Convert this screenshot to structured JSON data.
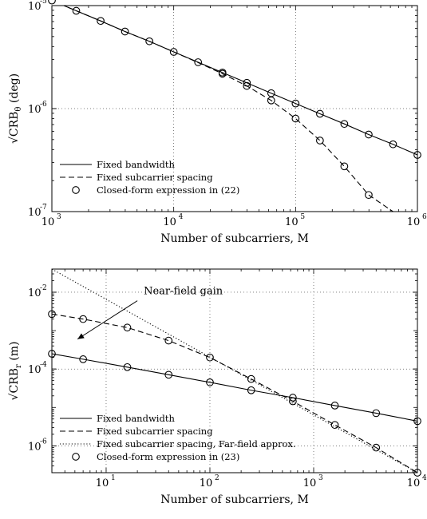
{
  "chart_data": [
    {
      "type": "line",
      "xscale": "log",
      "yscale": "log",
      "xlim": [
        1000,
        1000000
      ],
      "ylim": [
        1e-07,
        1e-05
      ],
      "xlabel": "Number of subcarriers, M",
      "ylabel": "√CRB_θ (deg)",
      "ylabel_parts": {
        "pre": "√CRB",
        "sub": "θ",
        "post": " (deg)"
      },
      "x_ticks": [
        {
          "value": 1000,
          "base": "10",
          "exp": "3"
        },
        {
          "value": 10000,
          "base": "10",
          "exp": "4"
        },
        {
          "value": 100000,
          "base": "10",
          "exp": "5"
        },
        {
          "value": 1000000,
          "base": "10",
          "exp": "6"
        }
      ],
      "y_ticks": [
        {
          "value": 1e-07,
          "base": "10",
          "exp": "-7"
        },
        {
          "value": 1e-06,
          "base": "10",
          "exp": "-6"
        },
        {
          "value": 1e-05,
          "base": "10",
          "exp": "-5"
        }
      ],
      "grid": true,
      "legend_position": "bottom-left",
      "legend": [
        {
          "label": "Fixed bandwidth",
          "style": "solid"
        },
        {
          "label": "Fixed subcarrier spacing",
          "style": "dashed"
        },
        {
          "label": "Closed-form expression in (22)",
          "style": "marker"
        }
      ],
      "series": [
        {
          "name": "Fixed bandwidth",
          "style": "solid",
          "x": [
            1000,
            1585,
            2512,
            3981,
            6310,
            10000,
            15849,
            25119,
            39811,
            63096,
            100000,
            158489,
            251189,
            398107,
            630957,
            1000000
          ],
          "y": [
            1.12e-05,
            8.9e-06,
            7.1e-06,
            5.6e-06,
            4.5e-06,
            3.55e-06,
            2.82e-06,
            2.24e-06,
            1.78e-06,
            1.41e-06,
            1.12e-06,
            8.9e-07,
            7.1e-07,
            5.6e-07,
            4.5e-07,
            3.55e-07
          ]
        },
        {
          "name": "Fixed subcarrier spacing",
          "style": "dashed",
          "x": [
            1000,
            1585,
            2512,
            3981,
            6310,
            10000,
            15849,
            25119,
            39811,
            63096,
            100000,
            158489,
            251189,
            398107,
            630957
          ],
          "y": [
            1.12e-05,
            8.9e-06,
            7.1e-06,
            5.6e-06,
            4.5e-06,
            3.55e-06,
            2.8e-06,
            2.18e-06,
            1.66e-06,
            1.2e-06,
            8e-07,
            4.9e-07,
            2.75e-07,
            1.45e-07,
            1e-07
          ]
        }
      ],
      "markers": [
        {
          "x": [
            1000,
            1585,
            2512,
            3981,
            6310,
            10000,
            15849,
            25119,
            39811,
            63096,
            100000,
            158489,
            251189,
            398107,
            630957,
            1000000
          ],
          "y": [
            1.12e-05,
            8.9e-06,
            7.1e-06,
            5.6e-06,
            4.5e-06,
            3.55e-06,
            2.82e-06,
            2.24e-06,
            1.78e-06,
            1.41e-06,
            1.12e-06,
            8.9e-07,
            7.1e-07,
            5.6e-07,
            4.5e-07,
            3.55e-07
          ]
        },
        {
          "x": [
            25119,
            39811,
            63096,
            100000,
            158489,
            251189,
            398107
          ],
          "y": [
            2.18e-06,
            1.66e-06,
            1.2e-06,
            8e-07,
            4.9e-07,
            2.75e-07,
            1.45e-07
          ]
        }
      ]
    },
    {
      "type": "line",
      "xscale": "log",
      "yscale": "log",
      "xlim": [
        3,
        10000
      ],
      "ylim": [
        2e-07,
        0.04
      ],
      "xlabel": "Number of subcarriers, M",
      "ylabel": "√CRB_r (m)",
      "ylabel_parts": {
        "pre": "√CRB",
        "sub": "r",
        "post": " (m)"
      },
      "x_ticks": [
        {
          "value": 10,
          "base": "10",
          "exp": "1"
        },
        {
          "value": 100,
          "base": "10",
          "exp": "2"
        },
        {
          "value": 1000,
          "base": "10",
          "exp": "3"
        },
        {
          "value": 10000,
          "base": "10",
          "exp": "4"
        }
      ],
      "y_ticks": [
        {
          "value": 1e-06,
          "base": "10",
          "exp": "-6"
        },
        {
          "value": 0.0001,
          "base": "10",
          "exp": "-4"
        },
        {
          "value": 0.01,
          "base": "10",
          "exp": "-2"
        }
      ],
      "grid": true,
      "legend_position": "bottom-left",
      "legend": [
        {
          "label": "Fixed bandwidth",
          "style": "solid"
        },
        {
          "label": "Fixed subcarrier spacing",
          "style": "dashed"
        },
        {
          "label": "Fixed subcarrier spacing, Far-field approx.",
          "style": "dotted"
        },
        {
          "label": "Closed-form expression in (23)",
          "style": "marker"
        }
      ],
      "annotation": {
        "text": "Near-field gain",
        "arrow_from": [
          20,
          0.006
        ],
        "arrow_to": [
          5.3,
          0.0006
        ]
      },
      "series": [
        {
          "name": "Fixed bandwidth",
          "style": "solid",
          "x": [
            3,
            6,
            16,
            40,
            100,
            250,
            630,
            1600,
            4000,
            10000
          ],
          "y": [
            0.00025,
            0.00018,
            0.000112,
            7.1e-05,
            4.5e-05,
            2.8e-05,
            1.8e-05,
            1.12e-05,
            7.1e-06,
            4.4e-06
          ]
        },
        {
          "name": "Fixed subcarrier spacing",
          "style": "dashed",
          "x": [
            3,
            6,
            16,
            40,
            100,
            250,
            630,
            1600,
            4000,
            10000
          ],
          "y": [
            0.0027,
            0.002,
            0.0012,
            0.00055,
            0.0002,
            5.5e-05,
            1.45e-05,
            3.5e-06,
            9e-07,
            2e-07
          ]
        },
        {
          "name": "Fixed subcarrier spacing, Far-field approx.",
          "style": "dotted",
          "x": [
            3,
            10000
          ],
          "y": [
            0.04,
            2e-07
          ]
        }
      ],
      "markers": [
        {
          "x": [
            3,
            6,
            16,
            40,
            100,
            250,
            630,
            1600,
            4000,
            10000
          ],
          "y": [
            0.00025,
            0.00018,
            0.000112,
            7.1e-05,
            4.5e-05,
            2.8e-05,
            1.8e-05,
            1.12e-05,
            7.1e-06,
            4.4e-06
          ]
        },
        {
          "x": [
            3,
            6,
            16,
            40,
            100,
            250,
            630,
            1600,
            4000,
            10000
          ],
          "y": [
            0.0027,
            0.002,
            0.0012,
            0.00055,
            0.0002,
            5.5e-05,
            1.45e-05,
            3.5e-06,
            9e-07,
            2e-07
          ]
        }
      ]
    }
  ]
}
